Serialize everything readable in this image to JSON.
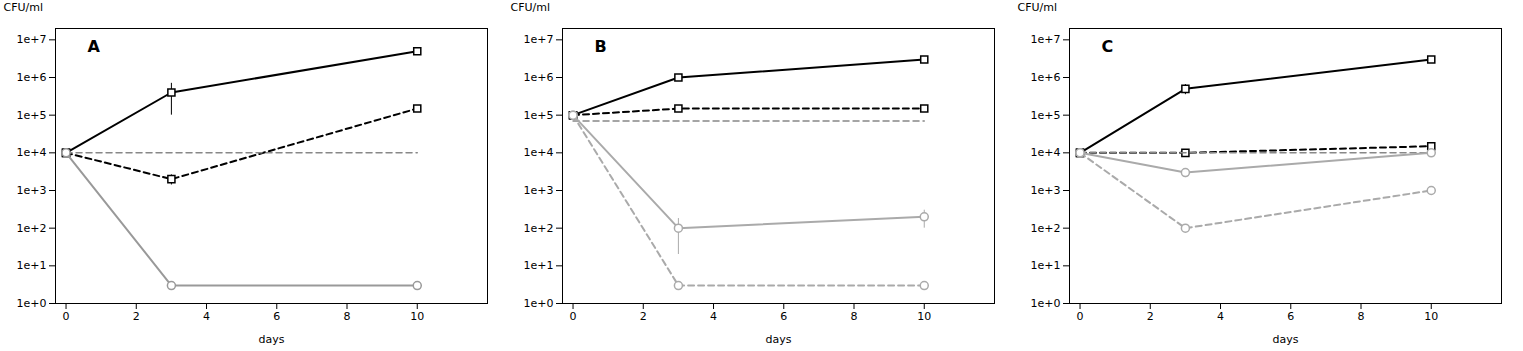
{
  "chart_data": [
    {
      "type": "line",
      "title": "A",
      "x_label": "days",
      "y_label": "CFU/ml",
      "log": "y",
      "xlim": [
        -0.3,
        12
      ],
      "xticks": [
        0,
        2,
        4,
        6,
        8,
        10
      ],
      "ylim": [
        1,
        20000000
      ],
      "yticks": [
        {
          "value": 1,
          "label": "1e+0"
        },
        {
          "value": 10,
          "label": "1e+1"
        },
        {
          "value": 100,
          "label": "1e+2"
        },
        {
          "value": 1000,
          "label": "1e+3"
        },
        {
          "value": 10000,
          "label": "1e+4"
        },
        {
          "value": 100000,
          "label": "1e+5"
        },
        {
          "value": 1000000,
          "label": "1e+6"
        },
        {
          "value": 10000000,
          "label": "1e+7"
        }
      ],
      "series": [
        {
          "color": "#000000",
          "line_style": "solid",
          "marker": "square",
          "x": [
            0,
            3,
            10
          ],
          "values": [
            10000,
            400000,
            5000000
          ],
          "yerr": [
            null,
            300000,
            null
          ]
        },
        {
          "color": "#000000",
          "line_style": "dashed",
          "marker": "square",
          "x": [
            0,
            3,
            10
          ],
          "values": [
            10000,
            2000,
            150000
          ],
          "yerr": [
            null,
            600,
            null
          ]
        },
        {
          "color": "#888888",
          "line_style": "dashed",
          "x": [
            0,
            10
          ],
          "values": [
            10000,
            10000
          ]
        },
        {
          "color": "#999999",
          "line_style": "solid",
          "marker": "circle",
          "x": [
            0,
            3,
            10
          ],
          "values": [
            10000,
            3,
            3
          ]
        }
      ]
    },
    {
      "type": "line",
      "title": "B",
      "x_label": "days",
      "y_label": "CFU/ml",
      "log": "y",
      "xlim": [
        -0.3,
        12
      ],
      "xticks": [
        0,
        2,
        4,
        6,
        8,
        10
      ],
      "ylim": [
        1,
        20000000
      ],
      "yticks": [
        {
          "value": 1,
          "label": "1e+0"
        },
        {
          "value": 10,
          "label": "1e+1"
        },
        {
          "value": 100,
          "label": "1e+2"
        },
        {
          "value": 1000,
          "label": "1e+3"
        },
        {
          "value": 10000,
          "label": "1e+4"
        },
        {
          "value": 100000,
          "label": "1e+5"
        },
        {
          "value": 1000000,
          "label": "1e+6"
        },
        {
          "value": 10000000,
          "label": "1e+7"
        }
      ],
      "series": [
        {
          "color": "#000000",
          "line_style": "solid",
          "marker": "square",
          "x": [
            0,
            3,
            10
          ],
          "values": [
            100000,
            1000000,
            3000000
          ]
        },
        {
          "color": "#000000",
          "line_style": "dashed",
          "marker": "square",
          "x": [
            0,
            3,
            10
          ],
          "values": [
            100000,
            150000,
            150000
          ],
          "yerr": [
            null,
            null,
            30000
          ]
        },
        {
          "color": "#888888",
          "line_style": "dashed",
          "x": [
            0,
            10
          ],
          "values": [
            70000,
            70000
          ]
        },
        {
          "color": "#aaaaaa",
          "line_style": "solid",
          "marker": "circle",
          "x": [
            0,
            3,
            10
          ],
          "values": [
            100000,
            100,
            200
          ],
          "yerr": [
            null,
            80,
            100
          ]
        },
        {
          "color": "#aaaaaa",
          "line_style": "dashed",
          "marker": "circle",
          "x": [
            0,
            3,
            10
          ],
          "values": [
            100000,
            3,
            3
          ]
        }
      ]
    },
    {
      "type": "line",
      "title": "C",
      "x_label": "days",
      "y_label": "CFU/ml",
      "log": "y",
      "xlim": [
        -0.3,
        12
      ],
      "xticks": [
        0,
        2,
        4,
        6,
        8,
        10
      ],
      "ylim": [
        1,
        20000000
      ],
      "yticks": [
        {
          "value": 1,
          "label": "1e+0"
        },
        {
          "value": 10,
          "label": "1e+1"
        },
        {
          "value": 100,
          "label": "1e+2"
        },
        {
          "value": 1000,
          "label": "1e+3"
        },
        {
          "value": 10000,
          "label": "1e+4"
        },
        {
          "value": 100000,
          "label": "1e+5"
        },
        {
          "value": 1000000,
          "label": "1e+6"
        },
        {
          "value": 10000000,
          "label": "1e+7"
        }
      ],
      "series": [
        {
          "color": "#000000",
          "line_style": "solid",
          "marker": "square",
          "x": [
            0,
            3,
            10
          ],
          "values": [
            10000,
            500000,
            3000000
          ],
          "yerr": [
            null,
            150000,
            null
          ]
        },
        {
          "color": "#000000",
          "line_style": "dashed",
          "marker": "square",
          "x": [
            0,
            3,
            10
          ],
          "values": [
            10000,
            10000,
            15000
          ]
        },
        {
          "color": "#888888",
          "line_style": "dashed",
          "x": [
            0,
            10
          ],
          "values": [
            10000,
            10000
          ]
        },
        {
          "color": "#aaaaaa",
          "line_style": "solid",
          "marker": "circle",
          "x": [
            0,
            3,
            10
          ],
          "values": [
            10000,
            3000,
            10000
          ],
          "yerr": [
            null,
            800,
            null
          ]
        },
        {
          "color": "#aaaaaa",
          "line_style": "dashed",
          "marker": "circle",
          "x": [
            0,
            3,
            10
          ],
          "values": [
            10000,
            100,
            1000
          ]
        }
      ]
    }
  ]
}
